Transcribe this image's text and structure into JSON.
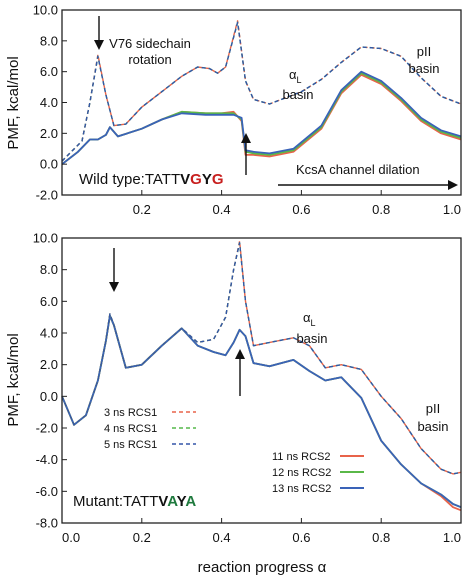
{
  "chart_data": [
    {
      "type": "line",
      "panel": "top",
      "ylabel": "PMF, kcal/mol",
      "xlim": [
        0,
        1.0
      ],
      "ylim": [
        -2.0,
        10.0
      ],
      "xticks": [
        "0.2",
        "0.4",
        "0.6",
        "0.8",
        "1.0"
      ],
      "yticks": [
        "-2.0",
        "0.0",
        "2.0",
        "4.0",
        "6.0",
        "8.0",
        "10.0"
      ],
      "annotations": {
        "sidechain": "V76 sidechain",
        "rotation": "rotation",
        "alpha_symbol": "α",
        "alpha_sub": "L",
        "alpha_basin": "basin",
        "pii": "pII",
        "pii_basin": "basin",
        "dilation": "KcsA channel dilation",
        "seq_prefix": "Wild type:TATT",
        "seq_v": "V",
        "seq_g1": "G",
        "seq_y": "Y",
        "seq_g2": "G"
      },
      "colors": {
        "seq_highlight": "#c8201f"
      },
      "series": [
        {
          "style": "dashed",
          "color": "#e8634a",
          "x": [
            0,
            0.05,
            0.07,
            0.09,
            0.11,
            0.13,
            0.16,
            0.2,
            0.25,
            0.3,
            0.34,
            0.37,
            0.39,
            0.41,
            0.44,
            0.46,
            0.48,
            0.52,
            0.6,
            0.65,
            0.7,
            0.75,
            0.8,
            0.85,
            0.9,
            0.95,
            1.0
          ],
          "y": [
            0.2,
            1.5,
            4.0,
            7.1,
            4.5,
            2.5,
            2.6,
            3.7,
            4.7,
            5.7,
            6.3,
            6.2,
            5.9,
            6.3,
            9.3,
            5.4,
            4.2,
            3.9,
            4.7,
            5.5,
            6.6,
            7.6,
            7.5,
            7.0,
            5.6,
            4.4,
            3.9
          ]
        },
        {
          "style": "dashed",
          "color": "#55b94a",
          "x": [
            0,
            0.05,
            0.07,
            0.09,
            0.11,
            0.13,
            0.16,
            0.2,
            0.25,
            0.3,
            0.34,
            0.37,
            0.39,
            0.41,
            0.44,
            0.46,
            0.48,
            0.52,
            0.6,
            0.65,
            0.7,
            0.75,
            0.8,
            0.85,
            0.9,
            0.95,
            1.0
          ],
          "y": [
            0.2,
            1.5,
            4.0,
            7.0,
            4.5,
            2.5,
            2.6,
            3.7,
            4.7,
            5.7,
            6.3,
            6.2,
            5.9,
            6.3,
            9.2,
            5.4,
            4.2,
            3.9,
            4.7,
            5.5,
            6.6,
            7.6,
            7.5,
            7.0,
            5.6,
            4.4,
            3.9
          ]
        },
        {
          "style": "dashed",
          "color": "#3355a8",
          "x": [
            0,
            0.05,
            0.07,
            0.09,
            0.11,
            0.13,
            0.16,
            0.2,
            0.25,
            0.3,
            0.34,
            0.37,
            0.39,
            0.41,
            0.44,
            0.46,
            0.48,
            0.52,
            0.6,
            0.65,
            0.7,
            0.75,
            0.8,
            0.85,
            0.9,
            0.95,
            1.0
          ],
          "y": [
            0.2,
            1.5,
            4.0,
            7.0,
            4.5,
            2.5,
            2.6,
            3.7,
            4.7,
            5.7,
            6.3,
            6.2,
            5.9,
            6.3,
            9.2,
            5.4,
            4.2,
            3.9,
            4.7,
            5.5,
            6.6,
            7.6,
            7.5,
            7.0,
            5.6,
            4.4,
            3.9
          ]
        },
        {
          "style": "solid",
          "color": "#e8634a",
          "x": [
            0,
            0.04,
            0.07,
            0.09,
            0.11,
            0.12,
            0.14,
            0.2,
            0.25,
            0.3,
            0.36,
            0.4,
            0.43,
            0.45,
            0.46,
            0.48,
            0.52,
            0.58,
            0.65,
            0.7,
            0.75,
            0.8,
            0.85,
            0.9,
            0.95,
            1.0
          ],
          "y": [
            0,
            0.8,
            1.6,
            1.6,
            1.9,
            2.4,
            1.8,
            2.3,
            2.9,
            3.4,
            3.3,
            3.3,
            3.4,
            2.8,
            0.6,
            0.6,
            0.5,
            0.8,
            2.3,
            4.6,
            5.8,
            5.2,
            4.1,
            2.8,
            2.0,
            1.6
          ]
        },
        {
          "style": "solid",
          "color": "#5ab848",
          "x": [
            0,
            0.04,
            0.07,
            0.09,
            0.11,
            0.12,
            0.14,
            0.2,
            0.25,
            0.3,
            0.36,
            0.4,
            0.43,
            0.45,
            0.46,
            0.48,
            0.52,
            0.58,
            0.65,
            0.7,
            0.75,
            0.8,
            0.85,
            0.9,
            0.95,
            1.0
          ],
          "y": [
            0,
            0.8,
            1.6,
            1.6,
            1.9,
            2.4,
            1.8,
            2.3,
            2.9,
            3.4,
            3.3,
            3.3,
            3.3,
            2.9,
            0.8,
            0.7,
            0.6,
            0.9,
            2.4,
            4.7,
            5.9,
            5.3,
            4.2,
            2.9,
            2.1,
            1.7
          ]
        },
        {
          "style": "solid",
          "color": "#3a63b8",
          "x": [
            0,
            0.04,
            0.07,
            0.09,
            0.11,
            0.12,
            0.14,
            0.2,
            0.25,
            0.3,
            0.36,
            0.4,
            0.43,
            0.45,
            0.46,
            0.48,
            0.52,
            0.58,
            0.65,
            0.7,
            0.75,
            0.8,
            0.85,
            0.9,
            0.95,
            1.0
          ],
          "y": [
            0,
            0.8,
            1.6,
            1.6,
            1.9,
            2.4,
            1.8,
            2.3,
            2.9,
            3.3,
            3.2,
            3.2,
            3.2,
            3.0,
            0.9,
            0.8,
            0.7,
            1.0,
            2.5,
            4.8,
            6.0,
            5.4,
            4.3,
            3.0,
            2.2,
            1.8
          ]
        }
      ]
    },
    {
      "type": "line",
      "panel": "bottom",
      "xlabel": "reaction progress α",
      "ylabel": "PMF, kcal/mol",
      "xlim": [
        0,
        1.0
      ],
      "ylim": [
        -8.0,
        10.0
      ],
      "xticks": [
        "0.0",
        "0.2",
        "0.4",
        "0.6",
        "0.8",
        "1.0"
      ],
      "yticks": [
        "-8.0",
        "-6.0",
        "-4.0",
        "-2.0",
        "0.0",
        "2.0",
        "4.0",
        "6.0",
        "8.0",
        "10.0"
      ],
      "annotations": {
        "alpha_symbol": "α",
        "alpha_sub": "L",
        "alpha_basin": "basin",
        "pii": "pII",
        "pii_basin": "basin",
        "seq_prefix": "Mutant:TATT",
        "seq_v": "V",
        "seq_a1": "A",
        "seq_y": "Y",
        "seq_a2": "A"
      },
      "colors": {
        "seq_highlight": "#1f7a3e"
      },
      "legend_left": [
        "3 ns RCS1",
        "4 ns RCS1",
        "5 ns RCS1"
      ],
      "legend_right": [
        "11 ns RCS2",
        "12 ns RCS2",
        "13 ns RCS2"
      ],
      "series": [
        {
          "name": "3 ns RCS1",
          "style": "dashed",
          "color": "#e8634a",
          "x": [
            0,
            0.03,
            0.06,
            0.09,
            0.11,
            0.12,
            0.13,
            0.16,
            0.2,
            0.25,
            0.3,
            0.34,
            0.38,
            0.41,
            0.43,
            0.445,
            0.46,
            0.48,
            0.52,
            0.58,
            0.62,
            0.66,
            0.7,
            0.75,
            0.8,
            0.85,
            0.9,
            0.95,
            0.98,
            1.0
          ],
          "y": [
            0,
            -1.8,
            -1.2,
            1.0,
            3.5,
            5.2,
            4.5,
            1.8,
            2.0,
            3.2,
            4.3,
            3.4,
            3.6,
            5.0,
            8.0,
            9.8,
            6.0,
            3.2,
            3.4,
            3.7,
            3.2,
            1.8,
            2.0,
            1.7,
            0.0,
            -1.4,
            -3.3,
            -4.6,
            -4.9,
            -4.8
          ]
        },
        {
          "name": "4 ns RCS1",
          "style": "dashed",
          "color": "#55b94a",
          "x": [
            0,
            0.03,
            0.06,
            0.09,
            0.11,
            0.12,
            0.13,
            0.16,
            0.2,
            0.25,
            0.3,
            0.34,
            0.38,
            0.41,
            0.43,
            0.445,
            0.46,
            0.48,
            0.52,
            0.58,
            0.62,
            0.66,
            0.7,
            0.75,
            0.8,
            0.85,
            0.9,
            0.95,
            0.98,
            1.0
          ],
          "y": [
            0,
            -1.8,
            -1.2,
            1.0,
            3.5,
            5.2,
            4.5,
            1.8,
            2.0,
            3.2,
            4.3,
            3.4,
            3.6,
            5.0,
            8.0,
            9.7,
            6.0,
            3.2,
            3.4,
            3.7,
            3.2,
            1.8,
            2.0,
            1.7,
            0.0,
            -1.4,
            -3.3,
            -4.6,
            -4.9,
            -4.8
          ]
        },
        {
          "name": "5 ns RCS1",
          "style": "dashed",
          "color": "#3355a8",
          "x": [
            0,
            0.03,
            0.06,
            0.09,
            0.11,
            0.12,
            0.13,
            0.16,
            0.2,
            0.25,
            0.3,
            0.34,
            0.38,
            0.41,
            0.43,
            0.445,
            0.46,
            0.48,
            0.52,
            0.58,
            0.62,
            0.66,
            0.7,
            0.75,
            0.8,
            0.85,
            0.9,
            0.95,
            0.98,
            1.0
          ],
          "y": [
            0,
            -1.8,
            -1.2,
            1.0,
            3.5,
            5.2,
            4.5,
            1.8,
            2.0,
            3.2,
            4.3,
            3.4,
            3.6,
            5.0,
            8.0,
            9.7,
            6.0,
            3.2,
            3.4,
            3.7,
            3.2,
            1.8,
            2.0,
            1.7,
            0.0,
            -1.4,
            -3.3,
            -4.6,
            -4.9,
            -4.8
          ]
        },
        {
          "name": "11 ns RCS2",
          "style": "solid",
          "color": "#e8634a",
          "x": [
            0,
            0.03,
            0.06,
            0.09,
            0.11,
            0.12,
            0.13,
            0.16,
            0.2,
            0.25,
            0.3,
            0.34,
            0.38,
            0.41,
            0.43,
            0.445,
            0.46,
            0.48,
            0.52,
            0.58,
            0.62,
            0.66,
            0.7,
            0.75,
            0.8,
            0.85,
            0.9,
            0.95,
            0.98,
            1.0
          ],
          "y": [
            0,
            -1.8,
            -1.2,
            1.0,
            3.5,
            5.1,
            4.5,
            1.8,
            2.0,
            3.2,
            4.3,
            3.2,
            2.8,
            2.6,
            3.4,
            4.2,
            3.8,
            2.1,
            1.9,
            2.3,
            1.6,
            1.0,
            1.2,
            -0.1,
            -2.8,
            -4.3,
            -5.5,
            -6.3,
            -7.0,
            -7.2
          ]
        },
        {
          "name": "12 ns RCS2",
          "style": "solid",
          "color": "#5ab848",
          "x": [
            0,
            0.03,
            0.06,
            0.09,
            0.11,
            0.12,
            0.13,
            0.16,
            0.2,
            0.25,
            0.3,
            0.34,
            0.38,
            0.41,
            0.43,
            0.445,
            0.46,
            0.48,
            0.52,
            0.58,
            0.62,
            0.66,
            0.7,
            0.75,
            0.8,
            0.85,
            0.9,
            0.95,
            0.98,
            1.0
          ],
          "y": [
            0,
            -1.8,
            -1.2,
            1.0,
            3.5,
            5.1,
            4.5,
            1.8,
            2.0,
            3.2,
            4.3,
            3.2,
            2.8,
            2.6,
            3.4,
            4.2,
            3.8,
            2.1,
            1.9,
            2.3,
            1.6,
            1.0,
            1.2,
            -0.1,
            -2.8,
            -4.3,
            -5.5,
            -6.2,
            -6.8,
            -7.0
          ]
        },
        {
          "name": "13 ns RCS2",
          "style": "solid",
          "color": "#3a63b8",
          "x": [
            0,
            0.03,
            0.06,
            0.09,
            0.11,
            0.12,
            0.13,
            0.16,
            0.2,
            0.25,
            0.3,
            0.34,
            0.38,
            0.41,
            0.43,
            0.445,
            0.46,
            0.48,
            0.52,
            0.58,
            0.62,
            0.66,
            0.7,
            0.75,
            0.8,
            0.85,
            0.9,
            0.95,
            0.98,
            1.0
          ],
          "y": [
            0,
            -1.8,
            -1.2,
            1.0,
            3.5,
            5.1,
            4.5,
            1.8,
            2.0,
            3.2,
            4.3,
            3.2,
            2.8,
            2.6,
            3.4,
            4.2,
            3.8,
            2.1,
            1.9,
            2.3,
            1.6,
            1.0,
            1.2,
            -0.1,
            -2.8,
            -4.3,
            -5.5,
            -6.2,
            -6.8,
            -7.0
          ]
        }
      ]
    }
  ]
}
